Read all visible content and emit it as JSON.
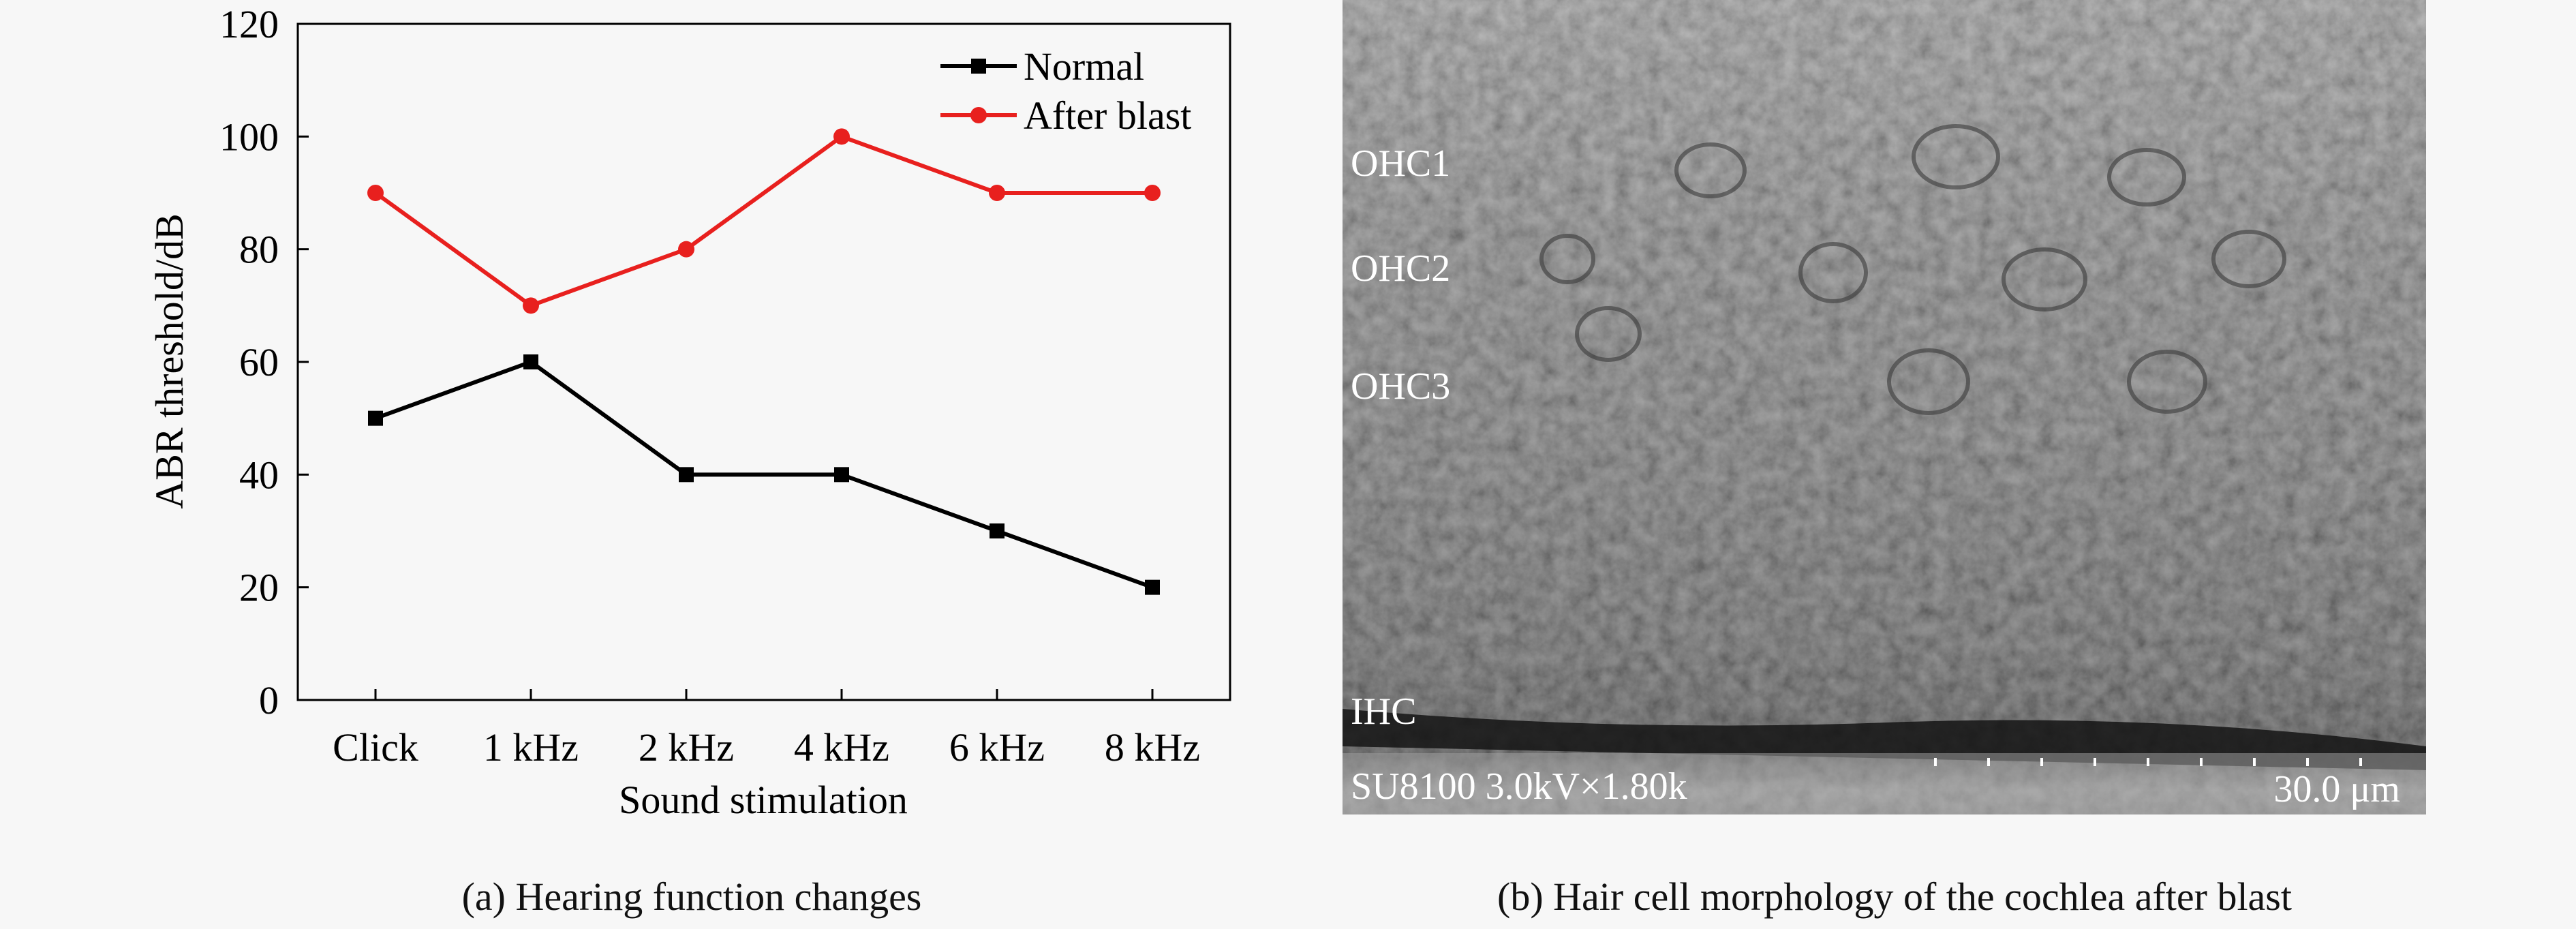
{
  "chart_data": {
    "type": "line",
    "categories": [
      "Click",
      "1 kHz",
      "2 kHz",
      "4 kHz",
      "6 kHz",
      "8 kHz"
    ],
    "series": [
      {
        "name": "Normal",
        "values": [
          50,
          60,
          40,
          40,
          30,
          20
        ],
        "color": "#000000",
        "marker": "square"
      },
      {
        "name": "After blast",
        "values": [
          90,
          70,
          80,
          100,
          90,
          90
        ],
        "color": "#e8201e",
        "marker": "circle"
      }
    ],
    "xlabel": "Sound stimulation",
    "ylabel": "ABR threshold/dB",
    "ylim": [
      0,
      120
    ],
    "yticks": [
      "0",
      "20",
      "40",
      "60",
      "80",
      "100",
      "120"
    ],
    "grid": false,
    "legend_position": "top-right"
  },
  "captions": {
    "a": "(a) Hearing function changes",
    "b": "(b) Hair cell morphology of the cochlea after blast"
  },
  "micrograph": {
    "labels": {
      "ohc1": "OHC1",
      "ohc2": "OHC2",
      "ohc3": "OHC3",
      "ihc": "IHC"
    },
    "info": "SU8100 3.0kV×1.80k",
    "scale": "30.0 μm"
  }
}
